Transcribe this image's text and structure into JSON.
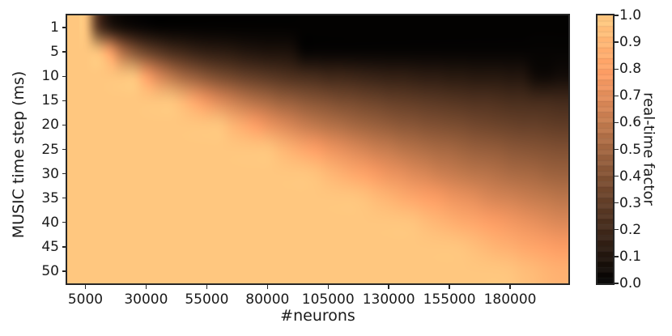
{
  "figure": {
    "background": "#ffffff",
    "colors": {
      "colormap_max": "#ffc77f",
      "colormap_min": "#000000",
      "axis": "#262626",
      "text": "#1a1a1a"
    }
  },
  "chart_data": {
    "type": "heatmap",
    "title": "",
    "xlabel": "#neurons",
    "ylabel": "MUSIC time step (ms)",
    "colorbar_label": "real-time factor",
    "colormap": "copper",
    "grid": false,
    "legend_position": "right-colorbar",
    "zlim": [
      0.0,
      1.0
    ],
    "xlim": [
      -2500,
      204000
    ],
    "x": [
      5000,
      10000,
      15000,
      20000,
      25000,
      30000,
      35000,
      40000,
      45000,
      50000,
      55000,
      60000,
      65000,
      70000,
      75000,
      80000,
      85000,
      90000,
      95000,
      100000,
      105000,
      110000,
      115000,
      120000,
      125000,
      130000,
      135000,
      140000,
      145000,
      150000,
      155000,
      160000,
      165000,
      170000,
      175000,
      180000,
      185000,
      190000,
      195000,
      200000
    ],
    "y": [
      1,
      5,
      10,
      15,
      20,
      25,
      30,
      35,
      40,
      45,
      50
    ],
    "x_ticks": [
      5000,
      30000,
      55000,
      80000,
      105000,
      130000,
      155000,
      180000
    ],
    "x_tick_labels": [
      "5000",
      "30000",
      "55000",
      "80000",
      "105000",
      "130000",
      "155000",
      "180000"
    ],
    "y_tick_labels": [
      "1",
      "5",
      "10",
      "15",
      "20",
      "25",
      "30",
      "35",
      "40",
      "45",
      "50"
    ],
    "colorbar_ticks": [
      1.0,
      0.9,
      0.8,
      0.7,
      0.6,
      0.5,
      0.4,
      0.3,
      0.2,
      0.1,
      0.0
    ],
    "colorbar_tick_labels": [
      "1.0",
      "0.9",
      "0.8",
      "0.7",
      "0.6",
      "0.5",
      "0.4",
      "0.3",
      "0.2",
      "0.1",
      "0.0"
    ],
    "values": [
      [
        1.0,
        0.28,
        0.1,
        0.05,
        0.03,
        0.02,
        0.01,
        0.01,
        0.01,
        0.01,
        0.01,
        0.01,
        0.01,
        0.01,
        0.01,
        0.01,
        0.01,
        0.01,
        0.01,
        0.01,
        0.01,
        0.01,
        0.01,
        0.01,
        0.01,
        0.01,
        0.01,
        0.01,
        0.01,
        0.01,
        0.01,
        0.01,
        0.01,
        0.01,
        0.01,
        0.01,
        0.01,
        0.01,
        0.01,
        0.01
      ],
      [
        1.0,
        1.0,
        0.83,
        0.57,
        0.43,
        0.34,
        0.28,
        0.23,
        0.2,
        0.17,
        0.15,
        0.14,
        0.13,
        0.11,
        0.1,
        0.09,
        0.09,
        0.08,
        0.02,
        0.02,
        0.02,
        0.02,
        0.02,
        0.02,
        0.02,
        0.02,
        0.02,
        0.02,
        0.02,
        0.02,
        0.02,
        0.02,
        0.02,
        0.02,
        0.02,
        0.02,
        0.02,
        0.02,
        0.02,
        0.02
      ],
      [
        1.0,
        1.0,
        1.0,
        1.0,
        1.0,
        0.82,
        0.69,
        0.6,
        0.52,
        0.47,
        0.42,
        0.38,
        0.35,
        0.32,
        0.3,
        0.28,
        0.26,
        0.24,
        0.23,
        0.22,
        0.2,
        0.2,
        0.19,
        0.18,
        0.17,
        0.16,
        0.16,
        0.15,
        0.14,
        0.14,
        0.13,
        0.13,
        0.12,
        0.12,
        0.12,
        0.11,
        0.11,
        0.05,
        0.04,
        0.06
      ],
      [
        1.0,
        1.0,
        1.0,
        1.0,
        1.0,
        1.0,
        1.0,
        1.0,
        0.93,
        0.84,
        0.76,
        0.7,
        0.65,
        0.6,
        0.56,
        0.53,
        0.49,
        0.47,
        0.44,
        0.42,
        0.4,
        0.38,
        0.37,
        0.35,
        0.34,
        0.32,
        0.31,
        0.3,
        0.29,
        0.28,
        0.27,
        0.26,
        0.25,
        0.25,
        0.24,
        0.23,
        0.23,
        0.22,
        0.22,
        0.21
      ],
      [
        1.0,
        1.0,
        1.0,
        1.0,
        1.0,
        1.0,
        1.0,
        1.0,
        1.0,
        1.0,
        1.0,
        1.0,
        0.92,
        0.86,
        0.8,
        0.75,
        0.71,
        0.67,
        0.63,
        0.6,
        0.57,
        0.55,
        0.52,
        0.5,
        0.48,
        0.46,
        0.44,
        0.43,
        0.41,
        0.4,
        0.39,
        0.38,
        0.36,
        0.35,
        0.34,
        0.33,
        0.32,
        0.32,
        0.31,
        0.3
      ],
      [
        1.0,
        1.0,
        1.0,
        1.0,
        1.0,
        1.0,
        1.0,
        1.0,
        1.0,
        1.0,
        1.0,
        1.0,
        1.0,
        1.0,
        1.0,
        1.0,
        0.94,
        0.89,
        0.84,
        0.8,
        0.76,
        0.73,
        0.7,
        0.67,
        0.64,
        0.62,
        0.59,
        0.57,
        0.55,
        0.53,
        0.52,
        0.5,
        0.48,
        0.47,
        0.46,
        0.44,
        0.43,
        0.42,
        0.41,
        0.4
      ],
      [
        1.0,
        1.0,
        1.0,
        1.0,
        1.0,
        1.0,
        1.0,
        1.0,
        1.0,
        1.0,
        1.0,
        1.0,
        1.0,
        1.0,
        1.0,
        1.0,
        1.0,
        1.0,
        1.0,
        0.98,
        0.93,
        0.89,
        0.85,
        0.82,
        0.78,
        0.75,
        0.73,
        0.7,
        0.68,
        0.65,
        0.63,
        0.61,
        0.59,
        0.58,
        0.56,
        0.54,
        0.53,
        0.52,
        0.5,
        0.49
      ],
      [
        1.0,
        1.0,
        1.0,
        1.0,
        1.0,
        1.0,
        1.0,
        1.0,
        1.0,
        1.0,
        1.0,
        1.0,
        1.0,
        1.0,
        1.0,
        1.0,
        1.0,
        1.0,
        1.0,
        1.0,
        1.0,
        1.0,
        1.0,
        0.98,
        0.94,
        0.91,
        0.87,
        0.84,
        0.81,
        0.79,
        0.76,
        0.74,
        0.72,
        0.69,
        0.67,
        0.66,
        0.64,
        0.62,
        0.61,
        0.59
      ],
      [
        1.0,
        1.0,
        1.0,
        1.0,
        1.0,
        1.0,
        1.0,
        1.0,
        1.0,
        1.0,
        1.0,
        1.0,
        1.0,
        1.0,
        1.0,
        1.0,
        1.0,
        1.0,
        1.0,
        1.0,
        1.0,
        1.0,
        1.0,
        1.0,
        1.0,
        1.0,
        1.0,
        0.99,
        0.95,
        0.92,
        0.89,
        0.86,
        0.84,
        0.81,
        0.79,
        0.77,
        0.75,
        0.73,
        0.71,
        0.69
      ],
      [
        1.0,
        1.0,
        1.0,
        1.0,
        1.0,
        1.0,
        1.0,
        1.0,
        1.0,
        1.0,
        1.0,
        1.0,
        1.0,
        1.0,
        1.0,
        1.0,
        1.0,
        1.0,
        1.0,
        1.0,
        1.0,
        1.0,
        1.0,
        1.0,
        1.0,
        1.0,
        1.0,
        1.0,
        1.0,
        1.0,
        1.0,
        0.99,
        0.96,
        0.93,
        0.9,
        0.88,
        0.85,
        0.83,
        0.81,
        0.79
      ],
      [
        1.0,
        1.0,
        1.0,
        1.0,
        1.0,
        1.0,
        1.0,
        1.0,
        1.0,
        1.0,
        1.0,
        1.0,
        1.0,
        1.0,
        1.0,
        1.0,
        1.0,
        1.0,
        1.0,
        1.0,
        1.0,
        1.0,
        1.0,
        1.0,
        1.0,
        1.0,
        1.0,
        1.0,
        1.0,
        1.0,
        1.0,
        1.0,
        1.0,
        1.0,
        1.0,
        0.99,
        0.96,
        0.94,
        0.91,
        0.89
      ]
    ]
  }
}
